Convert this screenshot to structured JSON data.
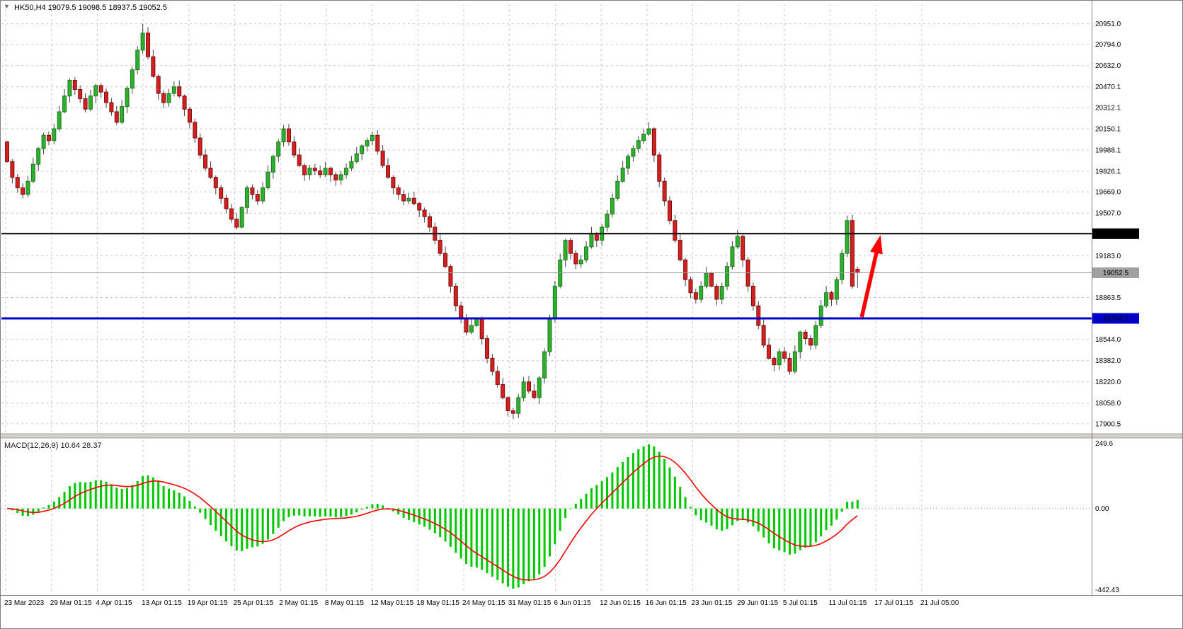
{
  "window": {
    "collapse_icon": "▼",
    "symbol_label": "HK50,H4  19079.5 19098.5 18937.5 19052.5"
  },
  "colors": {
    "up_fill": "#2FAE2F",
    "up_border": "#1E7A1E",
    "down_fill": "#D32020",
    "down_border": "#7F0E0E",
    "wick": "#444444",
    "grid": "#C6C6C6",
    "frame": "#808080",
    "splitter": "#D4D0C8",
    "resistance": "#000000",
    "support": "#0000C8",
    "current_price": "#A0A0A0",
    "arrow": "#FF0000",
    "macd_histogram": "#00C800",
    "macd_signal": "#FF0000",
    "axis_text": "#000000"
  },
  "chart_data": {
    "type": "candlestick",
    "symbol": "HK50",
    "timeframe": "H4",
    "quote": {
      "open": 19079.5,
      "high": 19098.5,
      "low": 18937.5,
      "close": 19052.5
    },
    "price_axis": {
      "ylim": [
        17830,
        21100
      ],
      "labels": [
        {
          "t": "20951.0",
          "p": 20951.0
        },
        {
          "t": "20794.0",
          "p": 20794.0
        },
        {
          "t": "20632.0",
          "p": 20632.0
        },
        {
          "t": "20470.1",
          "p": 20470.1
        },
        {
          "t": "20312.1",
          "p": 20312.1
        },
        {
          "t": "20150.1",
          "p": 20150.1
        },
        {
          "t": "19988.1",
          "p": 19988.1
        },
        {
          "t": "19826.1",
          "p": 19826.1
        },
        {
          "t": "19669.0",
          "p": 19669.0
        },
        {
          "t": "19507.0",
          "p": 19507.0
        },
        {
          "t": "19183.0",
          "p": 19183.0
        },
        {
          "t": "18863.5",
          "p": 18863.5
        },
        {
          "t": "18544.0",
          "p": 18544.0
        },
        {
          "t": "18382.0",
          "p": 18382.0
        },
        {
          "t": "18220.0",
          "p": 18220.0
        },
        {
          "t": "18058.0",
          "p": 18058.0
        },
        {
          "t": "17900.5",
          "p": 17900.5
        }
      ]
    },
    "x_axis": {
      "date_labels": [
        "23 Mar 2023",
        "29 Mar 01:15",
        "4 Apr 01:15",
        "13 Apr 01:15",
        "19 Apr 01:15",
        "25 Apr 01:15",
        "2 May 01:15",
        "8 May 01:15",
        "12 May 01:15",
        "18 May 01:15",
        "24 May 01:15",
        "31 May 01:15",
        "6 Jun 01:15",
        "12 Jun 01:15",
        "16 Jun 01:15",
        "23 Jun 01:15",
        "29 Jun 01:15",
        "5 Jul 01:15",
        "11 Jul 01:15",
        "17 Jul 01:15",
        "21 Jul 05:00"
      ]
    },
    "candles": {
      "first_open": 20050,
      "closes": [
        19900,
        19780,
        19700,
        19650,
        19750,
        19880,
        20000,
        20100,
        20060,
        20150,
        20280,
        20400,
        20520,
        20450,
        20380,
        20300,
        20400,
        20480,
        20430,
        20350,
        20280,
        20200,
        20320,
        20460,
        20600,
        20750,
        20880,
        20700,
        20550,
        20420,
        20350,
        20420,
        20470,
        20400,
        20300,
        20200,
        20080,
        19950,
        19850,
        19780,
        19700,
        19620,
        19540,
        19460,
        19400,
        19550,
        19700,
        19650,
        19600,
        19700,
        19820,
        19940,
        20050,
        20150,
        20050,
        19950,
        19870,
        19800,
        19850,
        19830,
        19800,
        19850,
        19800,
        19760,
        19800,
        19850,
        19900,
        19960,
        20020,
        20060,
        20100,
        19980,
        19870,
        19780,
        19700,
        19650,
        19600,
        19620,
        19580,
        19530,
        19480,
        19400,
        19300,
        19200,
        19100,
        18950,
        18800,
        18700,
        18600,
        18650,
        18700,
        18550,
        18400,
        18300,
        18200,
        18100,
        18000,
        17980,
        18100,
        18220,
        18150,
        18100,
        18250,
        18450,
        18700,
        18950,
        19150,
        19300,
        19200,
        19120,
        19150,
        19250,
        19350,
        19300,
        19400,
        19500,
        19620,
        19750,
        19850,
        19940,
        20000,
        20060,
        20110,
        20150,
        19950,
        19750,
        19600,
        19450,
        19300,
        19150,
        19000,
        18900,
        18850,
        18950,
        19050,
        18950,
        18850,
        18950,
        19100,
        19250,
        19330,
        19150,
        18950,
        18800,
        18650,
        18500,
        18400,
        18350,
        18450,
        18400,
        18300,
        18450,
        18600,
        18550,
        18500,
        18650,
        18800,
        18900,
        18850,
        19000,
        19200,
        19450,
        18950,
        19052.5
      ],
      "overrides": {
        "26": {
          "high": 20951
        },
        "96": {
          "low": 17956
        },
        "163": {
          "open": 19079.5,
          "high": 19098.5,
          "low": 18937.5,
          "close": 19052.5
        }
      }
    },
    "objects": {
      "resistance_line": {
        "price": 19350.0,
        "label": "19350.0"
      },
      "support_line": {
        "price": 18704.2,
        "label": "18704.2"
      },
      "current_price_line": {
        "price": 19052.5,
        "label": "19052.5"
      },
      "arrow": {
        "from": {
          "index": 163.8,
          "price": 18715
        },
        "to": {
          "index": 167.4,
          "price": 19340
        }
      }
    },
    "macd": {
      "full_label": "MACD(12,26,9) 10.64 28.37",
      "name": "MACD",
      "params": [
        12,
        26,
        9
      ],
      "current_macd": 10.64,
      "current_signal": 28.37,
      "axis_labels": {
        "top": "249.6",
        "zero": "0.00",
        "bottom": "-442.43"
      }
    }
  }
}
